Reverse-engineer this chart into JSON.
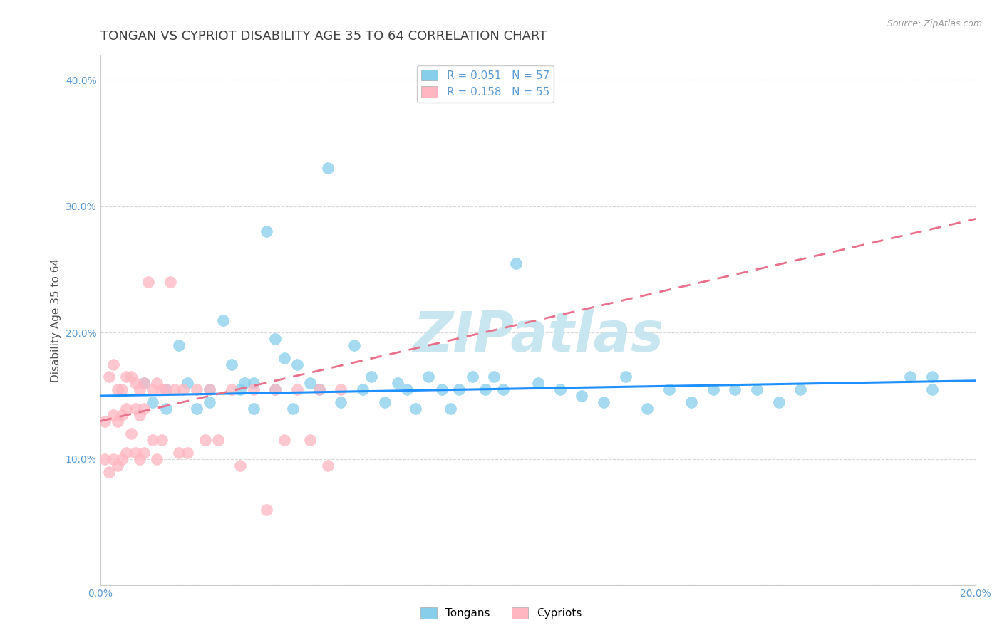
{
  "title": "TONGAN VS CYPRIOT DISABILITY AGE 35 TO 64 CORRELATION CHART",
  "source_text": "Source: ZipAtlas.com",
  "ylabel": "Disability Age 35 to 64",
  "xlim": [
    0.0,
    0.2
  ],
  "ylim": [
    0.0,
    0.42
  ],
  "legend_r_tongan": "0.051",
  "legend_n_tongan": "57",
  "legend_r_cypriot": "0.158",
  "legend_n_cypriot": "55",
  "tongan_color": "#87CEEB",
  "cypriot_color": "#FFB6C1",
  "tongan_line_color": "#1E90FF",
  "cypriot_line_color": "#E8708A",
  "grid_color": "#CCCCCC",
  "background_color": "#FFFFFF",
  "tongan_scatter_x": [
    0.01,
    0.012,
    0.015,
    0.015,
    0.018,
    0.02,
    0.022,
    0.025,
    0.025,
    0.028,
    0.03,
    0.032,
    0.033,
    0.035,
    0.035,
    0.038,
    0.04,
    0.04,
    0.042,
    0.044,
    0.045,
    0.048,
    0.05,
    0.052,
    0.055,
    0.058,
    0.06,
    0.062,
    0.065,
    0.068,
    0.07,
    0.072,
    0.075,
    0.078,
    0.08,
    0.082,
    0.085,
    0.088,
    0.09,
    0.092,
    0.095,
    0.1,
    0.105,
    0.11,
    0.115,
    0.12,
    0.125,
    0.13,
    0.135,
    0.14,
    0.145,
    0.15,
    0.155,
    0.16,
    0.185,
    0.19,
    0.19
  ],
  "tongan_scatter_y": [
    0.16,
    0.145,
    0.155,
    0.14,
    0.19,
    0.16,
    0.14,
    0.155,
    0.145,
    0.21,
    0.175,
    0.155,
    0.16,
    0.14,
    0.16,
    0.28,
    0.195,
    0.155,
    0.18,
    0.14,
    0.175,
    0.16,
    0.155,
    0.33,
    0.145,
    0.19,
    0.155,
    0.165,
    0.145,
    0.16,
    0.155,
    0.14,
    0.165,
    0.155,
    0.14,
    0.155,
    0.165,
    0.155,
    0.165,
    0.155,
    0.255,
    0.16,
    0.155,
    0.15,
    0.145,
    0.165,
    0.14,
    0.155,
    0.145,
    0.155,
    0.155,
    0.155,
    0.145,
    0.155,
    0.165,
    0.155,
    0.165
  ],
  "cypriot_scatter_x": [
    0.001,
    0.001,
    0.002,
    0.002,
    0.003,
    0.003,
    0.003,
    0.004,
    0.004,
    0.004,
    0.005,
    0.005,
    0.005,
    0.006,
    0.006,
    0.006,
    0.007,
    0.007,
    0.008,
    0.008,
    0.008,
    0.009,
    0.009,
    0.009,
    0.01,
    0.01,
    0.01,
    0.011,
    0.012,
    0.012,
    0.013,
    0.013,
    0.014,
    0.014,
    0.015,
    0.016,
    0.017,
    0.018,
    0.019,
    0.02,
    0.022,
    0.024,
    0.025,
    0.027,
    0.03,
    0.032,
    0.035,
    0.038,
    0.04,
    0.042,
    0.045,
    0.048,
    0.05,
    0.052,
    0.055
  ],
  "cypriot_scatter_y": [
    0.13,
    0.1,
    0.165,
    0.09,
    0.175,
    0.135,
    0.1,
    0.155,
    0.13,
    0.095,
    0.155,
    0.135,
    0.1,
    0.165,
    0.14,
    0.105,
    0.165,
    0.12,
    0.16,
    0.14,
    0.105,
    0.155,
    0.135,
    0.1,
    0.16,
    0.14,
    0.105,
    0.24,
    0.155,
    0.115,
    0.16,
    0.1,
    0.155,
    0.115,
    0.155,
    0.24,
    0.155,
    0.105,
    0.155,
    0.105,
    0.155,
    0.115,
    0.155,
    0.115,
    0.155,
    0.095,
    0.155,
    0.06,
    0.155,
    0.115,
    0.155,
    0.115,
    0.155,
    0.095,
    0.155
  ],
  "tongan_line_x": [
    0.0,
    0.2
  ],
  "tongan_line_y": [
    0.15,
    0.162
  ],
  "cypriot_line_x": [
    0.0,
    0.2
  ],
  "cypriot_line_y": [
    0.13,
    0.29
  ],
  "watermark_text": "ZIPatlas",
  "watermark_color": "#C8E6F0",
  "title_fontsize": 13,
  "label_fontsize": 11,
  "tick_fontsize": 10,
  "legend_fontsize": 11,
  "tick_color": "#5B9BD5",
  "title_color": "#404040",
  "ylabel_color": "#555555",
  "source_color": "#999999"
}
